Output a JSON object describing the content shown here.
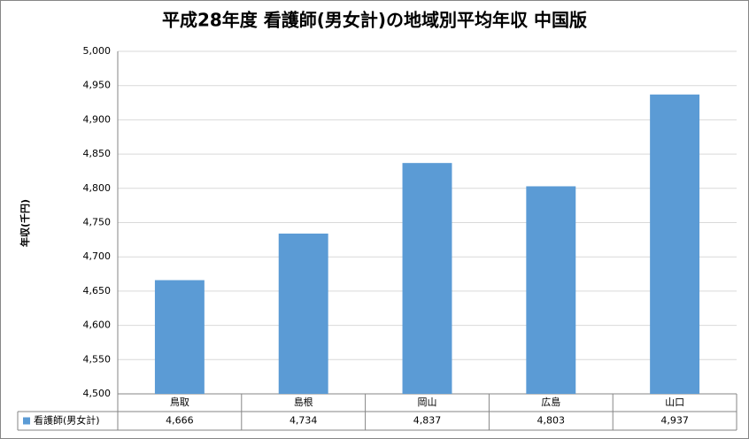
{
  "chart_data": {
    "type": "bar",
    "title": "平成28年度  看護師(男女計)の地域別平均年収  中国版",
    "y_label": "年収(千円)",
    "categories": [
      "鳥取",
      "島根",
      "岡山",
      "広島",
      "山口"
    ],
    "series": [
      {
        "name": "看護師(男女計)",
        "color": "#5b9bd5",
        "values": [
          4666,
          4734,
          4837,
          4803,
          4937
        ],
        "value_labels": [
          "4,666",
          "4,734",
          "4,837",
          "4,803",
          "4,937"
        ]
      }
    ],
    "ylim": [
      4500,
      5000
    ],
    "yticks": [
      {
        "value": 4500,
        "label": "4,500"
      },
      {
        "value": 4550,
        "label": "4,550"
      },
      {
        "value": 4600,
        "label": "4,600"
      },
      {
        "value": 4650,
        "label": "4,650"
      },
      {
        "value": 4700,
        "label": "4,700"
      },
      {
        "value": 4750,
        "label": "4,750"
      },
      {
        "value": 4800,
        "label": "4,800"
      },
      {
        "value": 4850,
        "label": "4,850"
      },
      {
        "value": 4900,
        "label": "4,900"
      },
      {
        "value": 4950,
        "label": "4,950"
      },
      {
        "value": 5000,
        "label": "5,000"
      }
    ],
    "grid": true
  }
}
